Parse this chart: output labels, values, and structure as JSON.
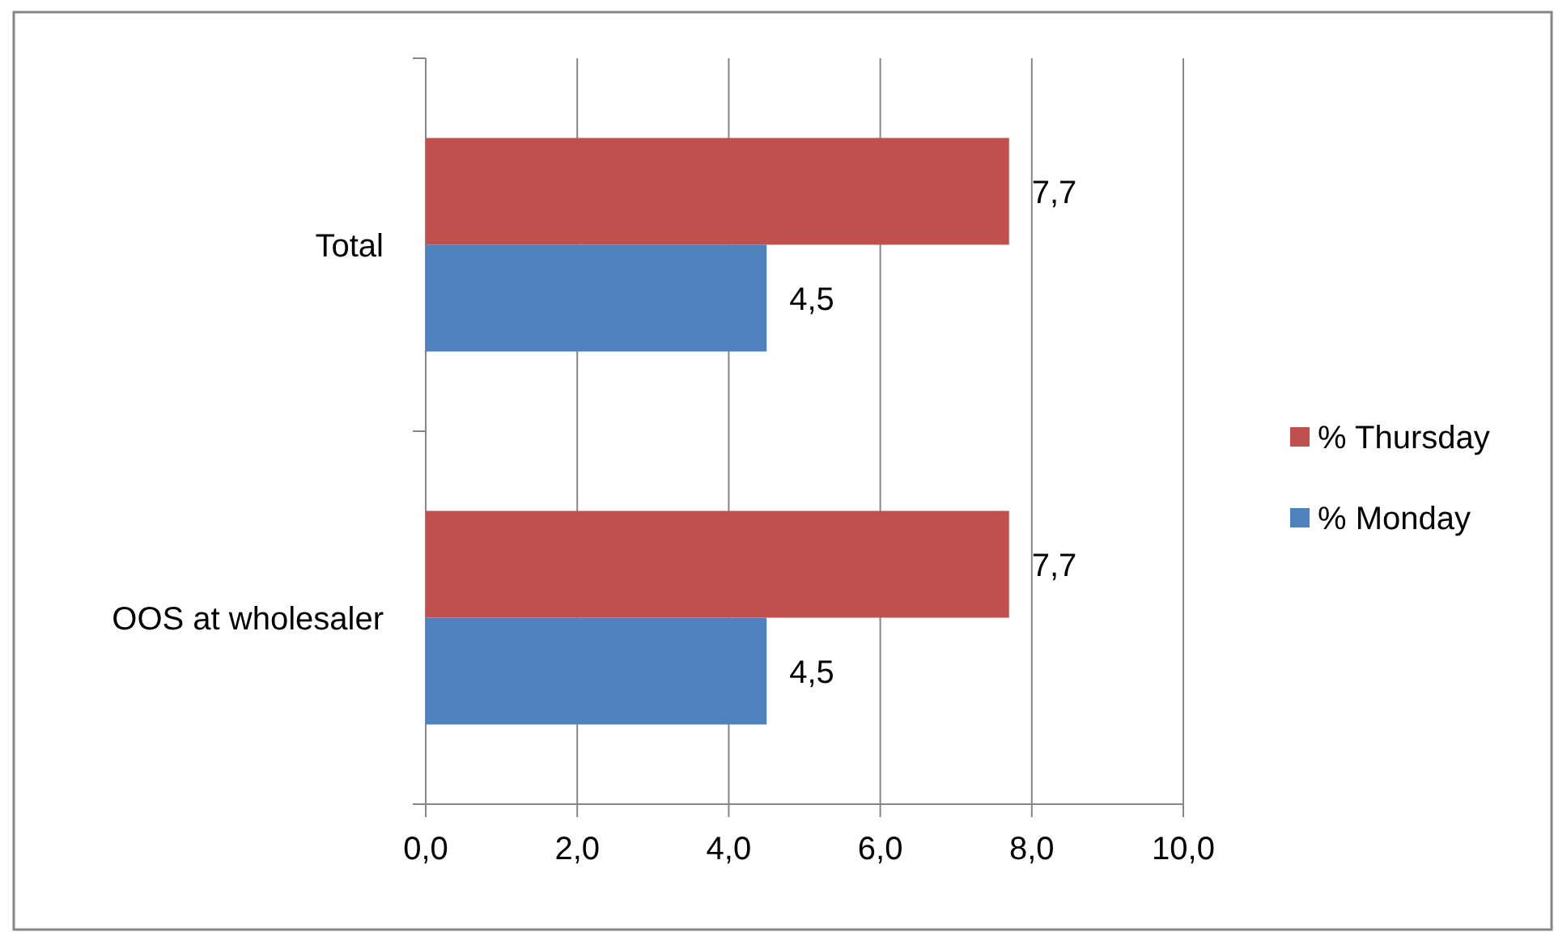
{
  "chart_data": {
    "type": "bar",
    "orientation": "horizontal",
    "categories": [
      "Total",
      "OOS at wholesaler"
    ],
    "series": [
      {
        "name": "% Thursday",
        "color": "#c0504d",
        "values": [
          7.7,
          7.7
        ],
        "value_labels": [
          "7,7",
          "7,7"
        ]
      },
      {
        "name": "% Monday",
        "color": "#4f81bd",
        "values": [
          4.5,
          4.5
        ],
        "value_labels": [
          "4,5",
          "4,5"
        ]
      }
    ],
    "xlim": [
      0,
      10
    ],
    "xticks": [
      {
        "value": 0,
        "label": "0,0"
      },
      {
        "value": 2,
        "label": "2,0"
      },
      {
        "value": 4,
        "label": "4,0"
      },
      {
        "value": 6,
        "label": "6,0"
      },
      {
        "value": 8,
        "label": "8,0"
      },
      {
        "value": 10,
        "label": "10,0"
      }
    ],
    "grid": "x",
    "legend": "right"
  }
}
